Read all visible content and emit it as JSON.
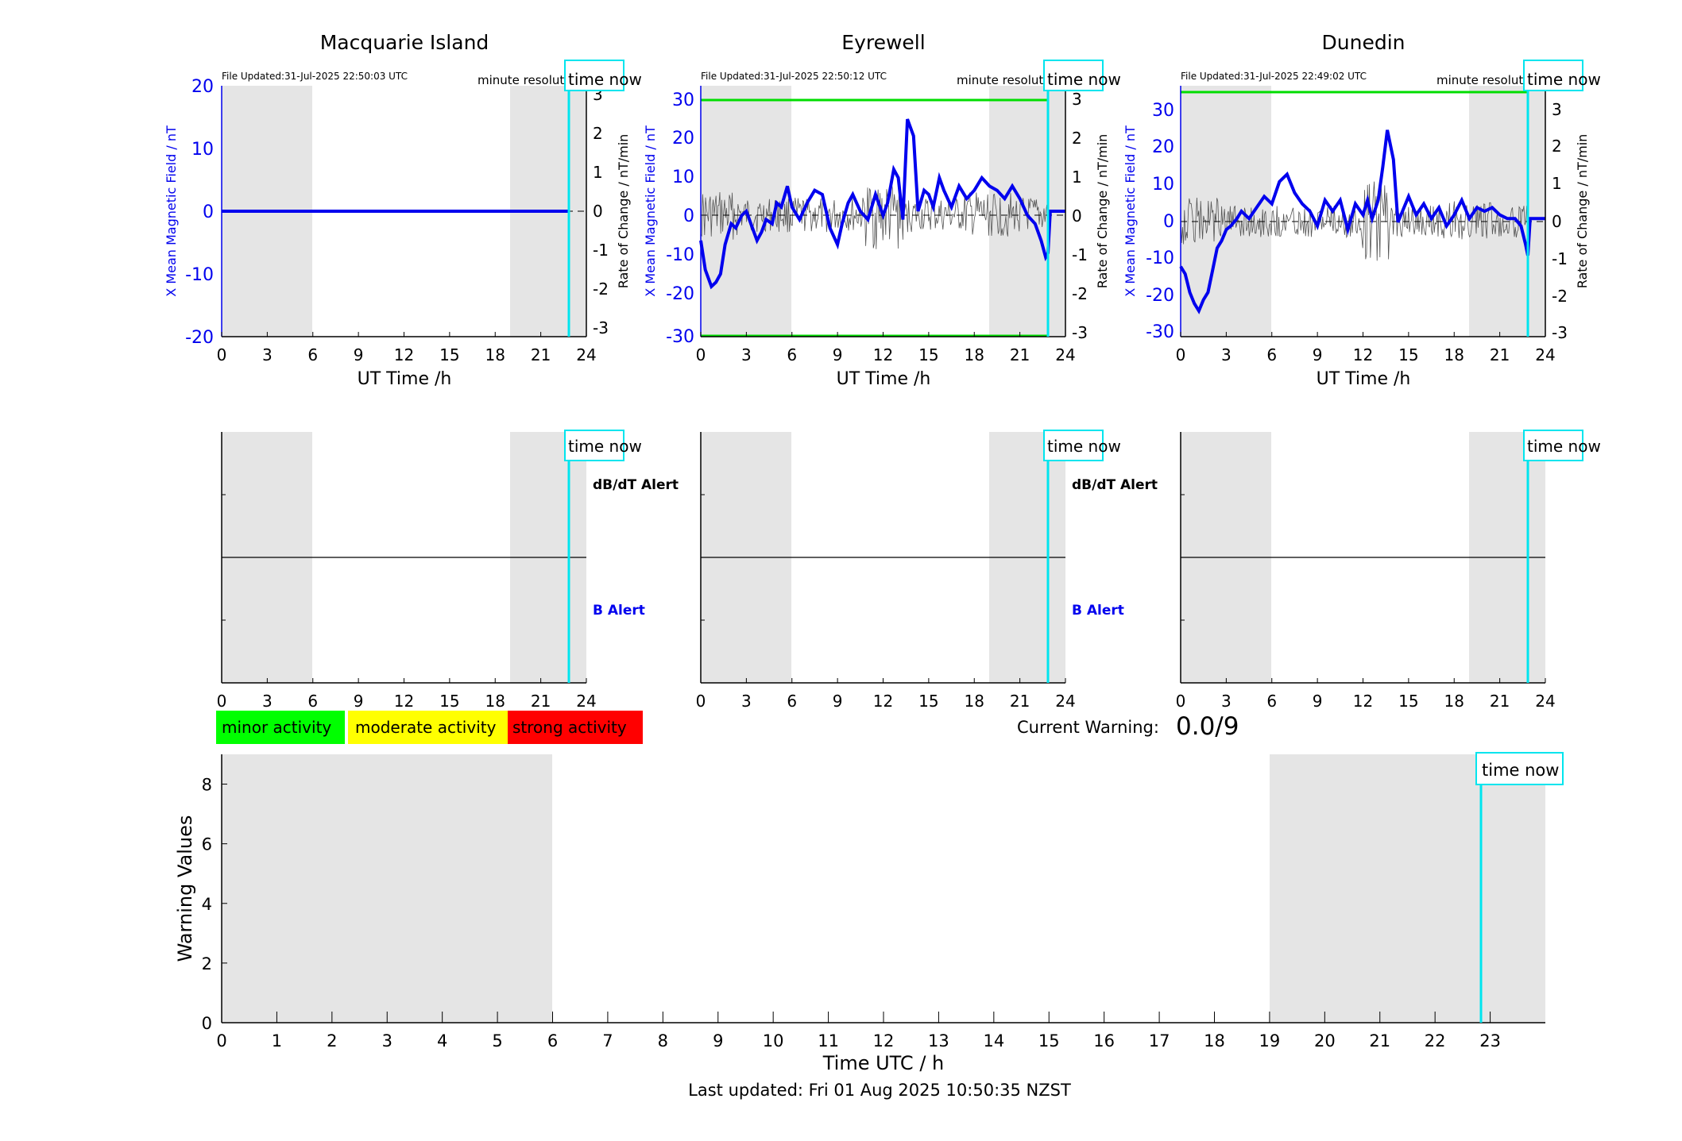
{
  "panels": [
    {
      "station": "Macquarie Island",
      "file_updated": "File Updated:31-Jul-2025 22:50:03 UTC",
      "resolution": "minute resolution",
      "ylabel_left": "X Mean Magnetic Field / nT",
      "ylabel_right": "Rate of Change / nT/min",
      "xlabel": "UT Time /h",
      "time_now_label": "time now",
      "left_ylim": [
        -20,
        20
      ],
      "left_ticks": [
        "-20",
        "-10",
        "0",
        "10",
        "20"
      ],
      "right_ticks": [
        "-3",
        "-2",
        "-1",
        "0",
        "1",
        "2",
        "3"
      ],
      "show_limits": false,
      "limit_value": null,
      "alert_labels": {
        "db_dt": "dB/dT Alert",
        "b": "B Alert"
      }
    },
    {
      "station": "Eyrewell",
      "file_updated": "File Updated:31-Jul-2025 22:50:12 UTC",
      "resolution": "minute resolution",
      "ylabel_left": "X Mean Magnetic Field / nT",
      "ylabel_right": "Rate of Change / nT/min",
      "xlabel": "UT Time /h",
      "time_now_label": "time now",
      "left_ylim": [
        -30,
        30
      ],
      "left_ticks": [
        "-30",
        "-20",
        "-10",
        "0",
        "10",
        "20",
        "30"
      ],
      "right_ticks": [
        "-3",
        "-2",
        "-1",
        "0",
        "1",
        "2",
        "3"
      ],
      "show_limits": true,
      "limit_value": 30,
      "alert_labels": {
        "db_dt": "dB/dT Alert",
        "b": "B Alert"
      }
    },
    {
      "station": "Dunedin",
      "file_updated": "File Updated:31-Jul-2025 22:49:02 UTC",
      "resolution": "minute resolution",
      "ylabel_left": "X Mean Magnetic Field / nT",
      "ylabel_right": "Rate of Change / nT/min",
      "xlabel": "UT Time /h",
      "time_now_label": "time now",
      "left_ylim": [
        -32,
        36
      ],
      "left_ticks": [
        "-30",
        "-20",
        "-10",
        "0",
        "10",
        "20",
        "30"
      ],
      "right_ticks": [
        "-3",
        "-2",
        "-1",
        "0",
        "1",
        "2",
        "3"
      ],
      "show_limits": true,
      "limit_value": 35,
      "alert_labels": null
    }
  ],
  "legend": {
    "minor": "minor activity",
    "moderate": "moderate activity",
    "strong": "strong activity"
  },
  "current_warning": {
    "label": "Current Warning:",
    "value": "0.0/9"
  },
  "warning_chart": {
    "ylabel": "Warning Values",
    "xlabel": "Time UTC / h",
    "time_now_label": "time now"
  },
  "footer": "Last updated: Fri 01 Aug 2025 10:50:35 NZST",
  "colors": {
    "field_line": "#0000ee",
    "rate_line": "#555555",
    "time_now": "#00e5ee",
    "limit": "#00dd00",
    "night_shade": "#e5e5e5",
    "minor": "#00ff00",
    "moderate": "#ffff00",
    "strong": "#ff0000"
  },
  "chart_data": [
    {
      "type": "line",
      "title": "Macquarie Island",
      "xlabel": "UT Time /h",
      "ylabel": "X Mean Magnetic Field / nT",
      "ylabel_right": "Rate of Change / nT/min",
      "xlim": [
        0,
        24
      ],
      "ylim": [
        -20,
        20
      ],
      "ylim_right": [
        -3.2,
        3.2
      ],
      "x_ticks": [
        0,
        3,
        6,
        9,
        12,
        15,
        18,
        21,
        24
      ],
      "night_shading_hours": [
        [
          0,
          6
        ],
        [
          19,
          24
        ]
      ],
      "time_now_hour": 22.85,
      "series": [
        {
          "name": "X Mean Magnetic Field",
          "x": [
            0,
            22.85
          ],
          "values": [
            0,
            0
          ]
        }
      ]
    },
    {
      "type": "line",
      "title": "Eyrewell",
      "xlabel": "UT Time /h",
      "ylabel": "X Mean Magnetic Field / nT",
      "ylabel_right": "Rate of Change / nT/min",
      "xlim": [
        0,
        24
      ],
      "ylim": [
        -30,
        30
      ],
      "ylim_right": [
        -3,
        3
      ],
      "x_ticks": [
        0,
        3,
        6,
        9,
        12,
        15,
        18,
        21,
        24
      ],
      "night_shading_hours": [
        [
          0,
          6
        ],
        [
          19,
          24
        ]
      ],
      "time_now_hour": 22.85,
      "threshold_lines": [
        30,
        -30
      ],
      "series": [
        {
          "name": "X Mean Magnetic Field",
          "x": [
            0,
            0.3,
            0.7,
            1.0,
            1.3,
            1.6,
            2.0,
            2.3,
            2.7,
            3.0,
            3.3,
            3.7,
            4.0,
            4.3,
            4.7,
            5.0,
            5.3,
            5.7,
            6.0,
            6.5,
            7.0,
            7.5,
            8.0,
            8.5,
            9.0,
            9.3,
            9.7,
            10.0,
            10.5,
            11.0,
            11.5,
            12.0,
            12.3,
            12.7,
            13.0,
            13.3,
            13.6,
            14.0,
            14.3,
            14.7,
            15.0,
            15.3,
            15.7,
            16.0,
            16.5,
            17.0,
            17.5,
            18.0,
            18.5,
            19.0,
            19.5,
            20.0,
            20.5,
            21.0,
            21.5,
            22.0,
            22.4,
            22.7,
            22.85,
            23.0,
            24.0
          ],
          "values": [
            -7,
            -14,
            -18,
            -17,
            -15,
            -8,
            -3,
            -4,
            -1,
            0,
            -3,
            -7,
            -5,
            -2,
            -3,
            2,
            1,
            6,
            1,
            -2,
            2,
            5,
            4,
            -4,
            -8,
            -3,
            2,
            4,
            0,
            -2,
            4,
            -1,
            2,
            10,
            8,
            -2,
            22,
            18,
            0,
            5,
            4,
            1,
            8,
            5,
            1,
            6,
            3,
            5,
            8,
            6,
            5,
            3,
            6,
            3,
            -1,
            -3,
            -7,
            -11,
            -10,
            0,
            0
          ]
        },
        {
          "name": "Rate of Change",
          "axis": "right",
          "description": "noisy minute rate-of-change trace between approx -1.3 and 1.5 nT/min"
        }
      ]
    },
    {
      "type": "line",
      "title": "Dunedin",
      "xlabel": "UT Time /h",
      "ylabel": "X Mean Magnetic Field / nT",
      "ylabel_right": "Rate of Change / nT/min",
      "xlim": [
        0,
        24
      ],
      "ylim": [
        -32,
        36
      ],
      "ylim_right": [
        -3.2,
        3.5
      ],
      "x_ticks": [
        0,
        3,
        6,
        9,
        12,
        15,
        18,
        21,
        24
      ],
      "night_shading_hours": [
        [
          0,
          6
        ],
        [
          19,
          24
        ]
      ],
      "time_now_hour": 22.85,
      "threshold_lines": [
        35
      ],
      "series": [
        {
          "name": "X Mean Magnetic Field",
          "x": [
            0,
            0.3,
            0.6,
            0.9,
            1.2,
            1.5,
            1.8,
            2.1,
            2.4,
            2.7,
            3.0,
            3.3,
            3.7,
            4.0,
            4.5,
            5.0,
            5.5,
            6.0,
            6.5,
            7.0,
            7.5,
            8.0,
            8.5,
            9.0,
            9.5,
            10.0,
            10.5,
            11.0,
            11.5,
            12.0,
            12.3,
            12.6,
            13.0,
            13.3,
            13.6,
            14.0,
            14.3,
            14.7,
            15.0,
            15.5,
            16.0,
            16.5,
            17.0,
            17.5,
            18.0,
            18.5,
            19.0,
            19.5,
            20.0,
            20.5,
            21.0,
            21.5,
            22.0,
            22.4,
            22.7,
            22.85,
            23.0,
            24.0
          ],
          "values": [
            -13,
            -15,
            -20,
            -23,
            -25,
            -22,
            -20,
            -14,
            -8,
            -6,
            -3,
            -2,
            0,
            2,
            0,
            3,
            6,
            4,
            10,
            12,
            7,
            4,
            2,
            -2,
            5,
            2,
            5,
            -3,
            4,
            1,
            5,
            0,
            5,
            14,
            24,
            16,
            -1,
            3,
            6,
            1,
            4,
            0,
            3,
            -2,
            1,
            5,
            0,
            3,
            2,
            3,
            1,
            0,
            0,
            -2,
            -7,
            -10,
            0,
            0
          ]
        },
        {
          "name": "Rate of Change",
          "axis": "right",
          "description": "noisy minute rate-of-change trace between approx -1.3 and 2.9 nT/min"
        }
      ]
    },
    {
      "type": "bar",
      "title": "",
      "xlabel": "Time UTC / h",
      "ylabel": "Warning Values",
      "xlim": [
        0,
        24
      ],
      "ylim": [
        0,
        9
      ],
      "x_ticks": [
        0,
        1,
        2,
        3,
        4,
        5,
        6,
        7,
        8,
        9,
        10,
        11,
        12,
        13,
        14,
        15,
        16,
        17,
        18,
        19,
        20,
        21,
        22,
        23
      ],
      "y_ticks": [
        0,
        2,
        4,
        6,
        8
      ],
      "night_shading_hours": [
        [
          0,
          6
        ],
        [
          19,
          24
        ]
      ],
      "time_now_hour": 22.85,
      "values": []
    }
  ]
}
